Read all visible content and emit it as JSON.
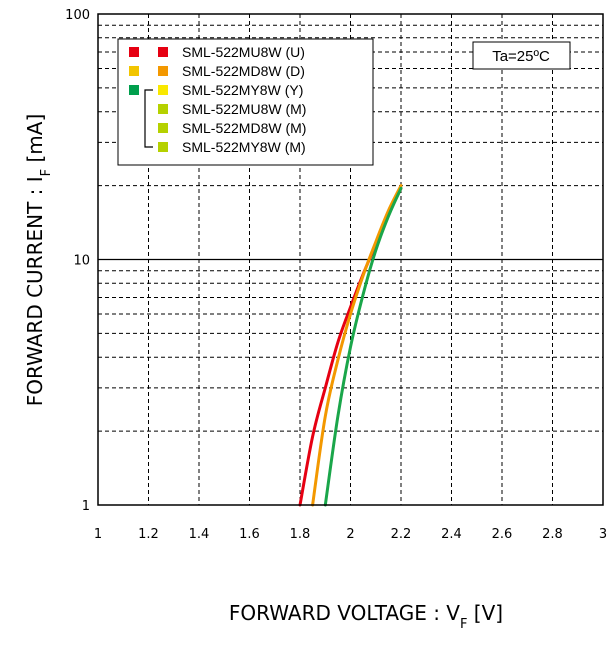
{
  "chart_data": {
    "type": "line",
    "xlabel_main": "FORWARD VOLTAGE : V",
    "xlabel_sub": "F",
    "xlabel_unit": " [V]",
    "ylabel_main": "FORWARD CURRENT : I",
    "ylabel_sub": "F",
    "ylabel_unit": " [mA]",
    "xlim": [
      1,
      3
    ],
    "ylim": [
      1,
      100
    ],
    "yscale": "log",
    "grid": true,
    "x_ticks": [
      "1",
      "1.2",
      "1.4",
      "1.6",
      "1.8",
      "2",
      "2.2",
      "2.4",
      "2.6",
      "2.8",
      "3"
    ],
    "y_ticks": [
      "1",
      "10",
      "100"
    ],
    "condition": "Ta=25ºC",
    "legend_placement": "top-left",
    "legend": [
      {
        "label": "SML-522MU8W (U)",
        "color": "#e60012",
        "marker": "#e60012"
      },
      {
        "label": "SML-522MD8W (D)",
        "color": "#f39800",
        "marker": "#f2c500"
      },
      {
        "label": "SML-522MY8W (Y)",
        "color": "#f9e800",
        "marker": "#009f4d"
      },
      {
        "label": "SML-522MU8W (M)",
        "color": "#b5d100",
        "marker": ""
      },
      {
        "label": "SML-522MD8W (M)",
        "color": "#b5d100",
        "marker": ""
      },
      {
        "label": "SML-522MY8W (M)",
        "color": "#b5d100",
        "marker": ""
      }
    ],
    "series": [
      {
        "name": "SML-522MU8W (U)",
        "color": "#e60012",
        "x": [
          1.8,
          1.85,
          1.9,
          1.95,
          2.0,
          2.05,
          2.1,
          2.15,
          2.2
        ],
        "y": [
          1.0,
          1.9,
          3.0,
          4.6,
          6.4,
          8.7,
          11.5,
          15.3,
          19.5
        ]
      },
      {
        "name": "SML-522MD8W (D)",
        "color": "#f39800",
        "x": [
          1.85,
          1.9,
          1.95,
          2.0,
          2.05,
          2.1,
          2.15,
          2.2
        ],
        "y": [
          1.0,
          2.3,
          3.9,
          6.0,
          8.6,
          11.8,
          15.8,
          20.0
        ]
      },
      {
        "name": "SML-522MY8W (Y)",
        "color": "#1aa64a",
        "x": [
          1.9,
          1.95,
          2.0,
          2.05,
          2.1,
          2.15,
          2.2
        ],
        "y": [
          1.0,
          2.3,
          4.4,
          7.2,
          10.9,
          15.0,
          19.5
        ]
      }
    ]
  }
}
